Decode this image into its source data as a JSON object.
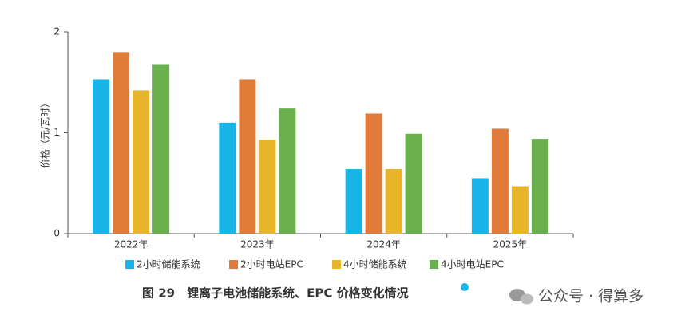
{
  "chart_data": {
    "type": "bar",
    "title": "图 29　锂离子电池储能系统、EPC 价格变化情况",
    "y_label": "价格（元/瓦时）",
    "categories": [
      "2022年",
      "2023年",
      "2024年",
      "2025年"
    ],
    "series": [
      {
        "name": "2小时储能系统",
        "color": "#1ab5e8",
        "values": [
          1.53,
          1.1,
          0.64,
          0.55
        ]
      },
      {
        "name": "2小时电站EPC",
        "color": "#e07b39",
        "values": [
          1.8,
          1.53,
          1.19,
          1.04
        ]
      },
      {
        "name": "4小时储能系统",
        "color": "#e8b52a",
        "values": [
          1.42,
          0.93,
          0.64,
          0.47
        ]
      },
      {
        "name": "4小时电站EPC",
        "color": "#6ab04c",
        "values": [
          1.68,
          1.24,
          0.99,
          0.94
        ]
      }
    ],
    "ylim": [
      0,
      2
    ],
    "yticks": [
      0,
      1,
      2
    ],
    "grid": false
  },
  "watermark": "公众号 · 得算多"
}
